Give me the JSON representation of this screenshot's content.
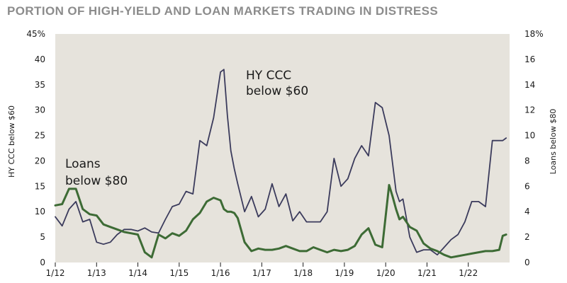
{
  "chart_data": {
    "type": "line",
    "title": "PORTION OF HIGH-YIELD AND LOAN MARKETS TRADING IN DISTRESS",
    "x": [
      "2012-01",
      "2012-03",
      "2012-05",
      "2012-07",
      "2012-09",
      "2012-11",
      "2013-01",
      "2013-03",
      "2013-05",
      "2013-07",
      "2013-09",
      "2013-11",
      "2014-01",
      "2014-03",
      "2014-05",
      "2014-07",
      "2014-09",
      "2014-11",
      "2015-01",
      "2015-03",
      "2015-05",
      "2015-07",
      "2015-09",
      "2015-11",
      "2016-01",
      "2016-02",
      "2016-03",
      "2016-04",
      "2016-05",
      "2016-06",
      "2016-08",
      "2016-10",
      "2016-12",
      "2017-02",
      "2017-04",
      "2017-06",
      "2017-08",
      "2017-10",
      "2017-12",
      "2018-02",
      "2018-04",
      "2018-06",
      "2018-08",
      "2018-10",
      "2018-12",
      "2019-02",
      "2019-04",
      "2019-06",
      "2019-08",
      "2019-10",
      "2019-12",
      "2020-02",
      "2020-03",
      "2020-04",
      "2020-05",
      "2020-06",
      "2020-08",
      "2020-10",
      "2020-12",
      "2021-02",
      "2021-04",
      "2021-06",
      "2021-08",
      "2021-10",
      "2021-12",
      "2022-02",
      "2022-04",
      "2022-06",
      "2022-08",
      "2022-10",
      "2022-11",
      "2022-12"
    ],
    "series": [
      {
        "name": "HY CCC below $60",
        "axis": "left",
        "color": "#3b3b5c",
        "values": [
          9,
          7.2,
          10.5,
          12,
          8,
          8.5,
          4,
          3.6,
          4,
          5.5,
          6.5,
          6.5,
          6.2,
          6.8,
          6,
          5.8,
          8.5,
          11,
          11.5,
          14,
          13.5,
          24,
          23,
          28.5,
          37.5,
          38,
          29,
          22,
          18.5,
          15.5,
          10,
          13,
          9,
          10.5,
          15.5,
          11,
          13.5,
          8.2,
          10,
          8,
          8,
          8,
          10,
          20.5,
          15,
          16.5,
          20.5,
          23,
          21,
          31.5,
          30.5,
          25,
          19.5,
          14,
          12,
          12.5,
          5,
          2,
          2.5,
          2.5,
          1.5,
          3,
          4.5,
          5.5,
          8,
          12,
          12,
          11,
          24,
          24,
          24,
          24.5
        ]
      },
      {
        "name": "Loans below $80",
        "axis": "right",
        "color": "#3d6b35",
        "values": [
          4.5,
          4.6,
          5.8,
          5.8,
          4.2,
          3.8,
          3.7,
          3,
          2.8,
          2.6,
          2.4,
          2.3,
          2.2,
          0.8,
          0.4,
          2.2,
          1.9,
          2.3,
          2.1,
          2.5,
          3.4,
          3.9,
          4.8,
          5.1,
          4.9,
          4.2,
          4,
          4,
          3.9,
          3.5,
          1.6,
          0.9,
          1.1,
          1,
          1,
          1.1,
          1.3,
          1.1,
          0.9,
          0.9,
          1.2,
          1,
          0.8,
          1,
          0.9,
          1,
          1.3,
          2.2,
          2.7,
          1.4,
          1.2,
          6.1,
          5.2,
          4.2,
          3.4,
          3.6,
          2.8,
          2.5,
          1.5,
          1.1,
          0.9,
          0.6,
          0.4,
          0.5,
          0.6,
          0.7,
          0.8,
          0.9,
          0.9,
          1,
          2.1,
          2.2
        ]
      }
    ],
    "xticks": [
      "1/12",
      "1/13",
      "1/14",
      "1/15",
      "1/16",
      "1/17",
      "1/18",
      "1/19",
      "1/20",
      "1/21",
      "1/22"
    ],
    "yticks_left": [
      "0",
      "5",
      "10",
      "15",
      "20",
      "25",
      "30",
      "35",
      "40",
      "45%"
    ],
    "yticks_right": [
      "0",
      "2",
      "4",
      "6",
      "8",
      "10",
      "12",
      "14",
      "16",
      "18%"
    ],
    "ylabel_left": "HY CCC below $60",
    "ylabel_right": "Loans below $80",
    "ylim_left": [
      0,
      45
    ],
    "ylim_right": [
      0,
      18
    ],
    "annotations": {
      "hy_line1": "HY CCC",
      "hy_line2": "below $60",
      "loans_line1": "Loans",
      "loans_line2": "below $80"
    },
    "plot_background": "#e6e3dc",
    "grid": false,
    "legend": "none"
  }
}
